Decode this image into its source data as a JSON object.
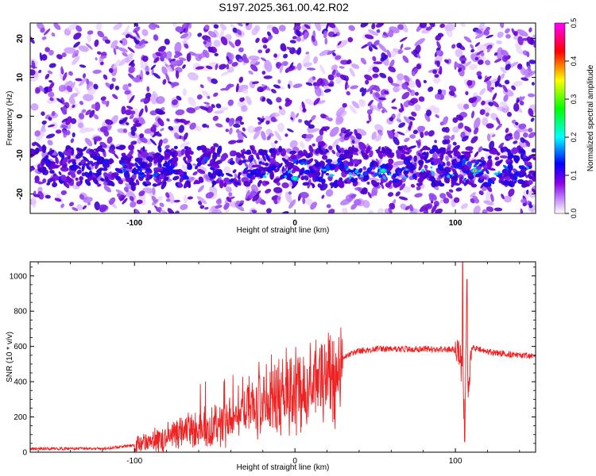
{
  "title": "S197.2025.361.00.42.R02",
  "chart_data": [
    {
      "type": "heatmap",
      "title": "S197.2025.361.00.42.R02",
      "xlabel": "Height of straight line (km)",
      "ylabel": "Frequency (Hz)",
      "xlim": [
        -165,
        150
      ],
      "ylim": [
        -25,
        24
      ],
      "x_ticks": [
        -100,
        0,
        100
      ],
      "y_ticks": [
        -20,
        -10,
        0,
        10,
        20
      ],
      "colorbar": {
        "label": "Normalized spectral amplitude",
        "range": [
          0.0,
          0.5
        ],
        "ticks": [
          "0.0",
          "0.1",
          "0.2",
          "0.3",
          "0.4",
          "0.5"
        ],
        "colors": [
          "#ffffff",
          "#8a00e6",
          "#0000ff",
          "#00ffff",
          "#00ff00",
          "#ffff00",
          "#ff0000",
          "#ff00ff"
        ]
      },
      "features": {
        "background_band": "purple noise across all frequencies",
        "strong_band_freq_hz": [
          -18,
          -10
        ],
        "hot_spots": [
          {
            "x": 0,
            "y": -16,
            "value": 0.2
          },
          {
            "x": 55,
            "y": -14,
            "value": 0.2
          },
          {
            "x": 112,
            "y": -14,
            "value": 0.4
          }
        ]
      }
    },
    {
      "type": "line",
      "title": "",
      "xlabel": "Height of straight line (km)",
      "ylabel": "SNR (10 * v/v)",
      "xlim": [
        -165,
        150
      ],
      "ylim": [
        0,
        1080
      ],
      "x_ticks": [
        -100,
        0,
        100
      ],
      "y_ticks": [
        0,
        200,
        400,
        600,
        800,
        1000
      ],
      "color": "#ee2222",
      "series": [
        {
          "name": "",
          "x": [
            -165,
            -120,
            -100,
            -90,
            -80,
            -70,
            -60,
            -50,
            -40,
            -30,
            -20,
            -10,
            0,
            10,
            20,
            30,
            40,
            50,
            60,
            70,
            80,
            90,
            100,
            103,
            105,
            106,
            107,
            108,
            110,
            120,
            130,
            140,
            150
          ],
          "y": [
            20,
            20,
            40,
            70,
            90,
            120,
            140,
            160,
            200,
            250,
            300,
            340,
            360,
            400,
            470,
            540,
            575,
            585,
            585,
            585,
            585,
            585,
            580,
            560,
            350,
            100,
            900,
            300,
            600,
            570,
            560,
            550,
            545
          ]
        }
      ]
    }
  ]
}
